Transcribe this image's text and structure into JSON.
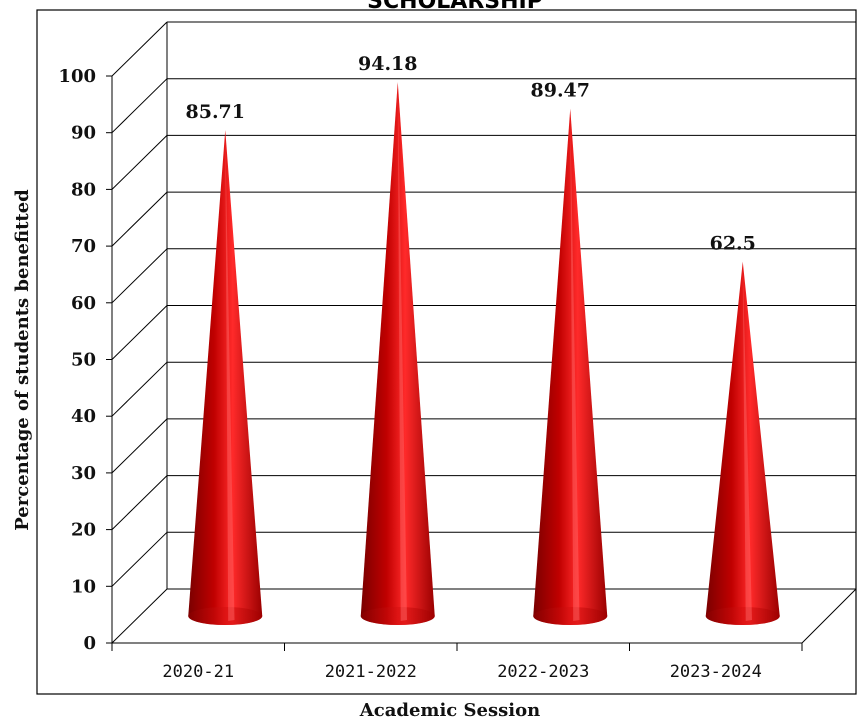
{
  "chart_data": {
    "type": "bar",
    "bar_shape": "cone",
    "title": "SCHOLARSHIP",
    "xlabel": "Academic Session",
    "ylabel": "Percentage of students benefitted",
    "categories": [
      "2020-21",
      "2021-2022",
      "2022-2023",
      "2023-2024"
    ],
    "values": [
      85.71,
      94.18,
      89.47,
      62.5
    ],
    "value_labels": [
      "85.71",
      "94.18",
      "89.47",
      "62.5"
    ],
    "ylim": [
      0,
      100
    ],
    "yticks": [
      0,
      10,
      20,
      30,
      40,
      50,
      60,
      70,
      80,
      90,
      100
    ],
    "grid": true,
    "legend": "none",
    "bar_color": "#d01010"
  }
}
